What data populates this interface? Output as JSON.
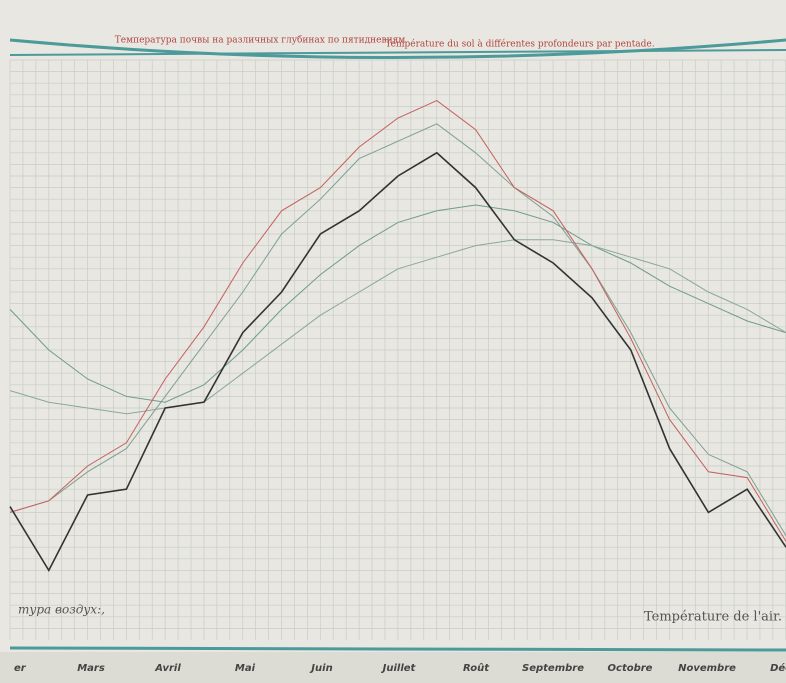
{
  "chart_data": {
    "type": "line",
    "title": "Температура почвы на различных глубинах по пятидневиям",
    "subtitle": "Température du sol à différentes profondeurs par pentade.",
    "annotations": [
      "тура воздух:,",
      "Température de l'air."
    ],
    "month_labels": [
      "er",
      "Mars",
      "Avril",
      "Mai",
      "Juin",
      "Juillet",
      "Roût",
      "Septembre",
      "Octobre",
      "Novembre",
      "Déce"
    ],
    "x": [
      0,
      3,
      6,
      9,
      12,
      15,
      18,
      21,
      24,
      27,
      30,
      33,
      36,
      39,
      42,
      45,
      48,
      51,
      54,
      57,
      60
    ],
    "xlim": [
      0,
      60
    ],
    "ylim": [
      0,
      100
    ],
    "series": [
      {
        "color": "#6f9c8c",
        "values": [
          57,
          50,
          45,
          42,
          41,
          44,
          50,
          57,
          63,
          68,
          72,
          74,
          75,
          74,
          72,
          68,
          65,
          61,
          58,
          55,
          53
        ]
      },
      {
        "color": "#8aa89c",
        "values": [
          43,
          41,
          40,
          39,
          40,
          41,
          46,
          51,
          56,
          60,
          64,
          66,
          68,
          69,
          69,
          68,
          66,
          64,
          60,
          57,
          53
        ]
      },
      {
        "color": "#7f9f92",
        "values": [
          22,
          24,
          29,
          33,
          42,
          51,
          60,
          70,
          76,
          83,
          86,
          89,
          84,
          78,
          73,
          64,
          53,
          40,
          32,
          29,
          18
        ]
      },
      {
        "color": "#c46060",
        "values": [
          22,
          24,
          30,
          34,
          45,
          54,
          65,
          74,
          78,
          85,
          90,
          93,
          88,
          78,
          74,
          64,
          52,
          38,
          29,
          28,
          17
        ]
      },
      {
        "color": "#333333",
        "values": [
          23,
          12,
          25,
          26,
          40,
          41,
          53,
          60,
          70,
          74,
          80,
          84,
          78,
          69,
          65,
          59,
          50,
          33,
          22,
          26,
          16
        ]
      }
    ]
  }
}
